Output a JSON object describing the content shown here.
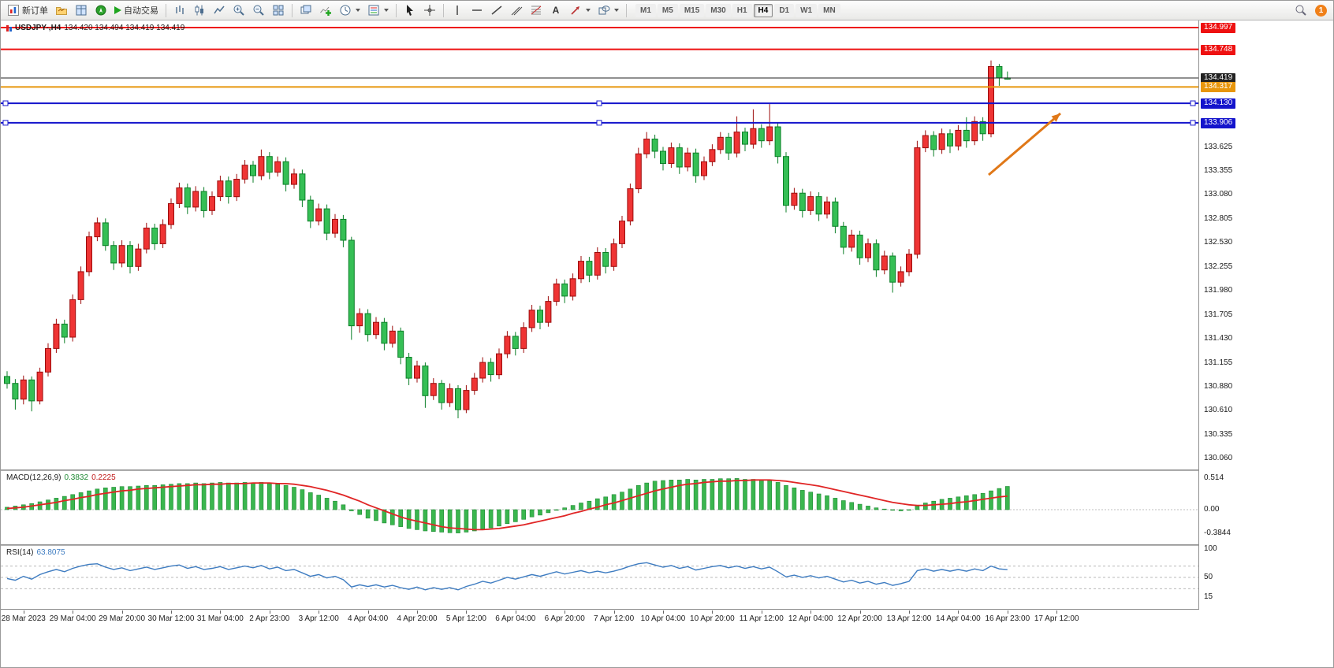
{
  "toolbar": {
    "new_order": "新订单",
    "auto_trading": "自动交易",
    "timeframes": [
      "M1",
      "M5",
      "M15",
      "M30",
      "H1",
      "H4",
      "D1",
      "W1",
      "MN"
    ],
    "active_timeframe": "H4",
    "notification_count": "1"
  },
  "chart": {
    "symbol_period": "USDJPY-,H4",
    "ohlc_readout": "134.420 134.494 134.419 134.419"
  },
  "price_axis": {
    "plain_labels": [
      "133.625",
      "133.355",
      "133.080",
      "132.805",
      "132.530",
      "132.255",
      "131.980",
      "131.705",
      "131.430",
      "131.155",
      "130.880",
      "130.610",
      "130.335",
      "130.060"
    ]
  },
  "hlines": [
    {
      "label": "134.997",
      "value": 134.997,
      "color": "#ee1111",
      "width": 2,
      "handles": false
    },
    {
      "label": "134.748",
      "value": 134.748,
      "color": "#ee1111",
      "width": 2,
      "handles": false
    },
    {
      "label": "134.419",
      "value": 134.419,
      "color": "#222222",
      "width": 1,
      "handles": false,
      "current": true
    },
    {
      "label": "134.317",
      "value": 134.317,
      "color": "#e8960c",
      "width": 2,
      "handles": false
    },
    {
      "label": "134.130",
      "value": 134.13,
      "color": "#1414cc",
      "width": 2,
      "handles": true
    },
    {
      "label": "133.906",
      "value": 133.906,
      "color": "#1414cc",
      "width": 2,
      "handles": true
    }
  ],
  "annotation_arrow": {
    "from": [
      1253,
      196
    ],
    "to": [
      1344,
      118
    ],
    "color": "#e07818"
  },
  "colors": {
    "bull": "#ef3434",
    "bull_border": "#9c0d0d",
    "bear": "#35bf55",
    "bear_border": "#0c7f28",
    "macd_hist": "#3ab64e",
    "macd_hist_border": "#1e8a33",
    "macd_signal": "#e02525",
    "rsi_line": "#3e7cc1"
  },
  "chart_data": {
    "type": "candlestick",
    "symbol": "USDJPY-",
    "timeframe": "H4",
    "candles": [
      [
        131.0,
        131.06,
        130.86,
        130.92
      ],
      [
        130.92,
        130.97,
        130.62,
        130.74
      ],
      [
        130.74,
        131.01,
        130.68,
        130.96
      ],
      [
        130.96,
        131.0,
        130.6,
        130.72
      ],
      [
        130.72,
        131.1,
        130.68,
        131.05
      ],
      [
        131.05,
        131.38,
        131.0,
        131.32
      ],
      [
        131.32,
        131.66,
        131.27,
        131.6
      ],
      [
        131.6,
        131.65,
        131.38,
        131.45
      ],
      [
        131.45,
        131.94,
        131.4,
        131.88
      ],
      [
        131.88,
        132.26,
        131.83,
        132.2
      ],
      [
        132.2,
        132.66,
        132.15,
        132.6
      ],
      [
        132.6,
        132.82,
        132.55,
        132.76
      ],
      [
        132.76,
        132.81,
        132.44,
        132.5
      ],
      [
        132.5,
        132.55,
        132.22,
        132.3
      ],
      [
        132.3,
        132.56,
        132.25,
        132.5
      ],
      [
        132.5,
        132.55,
        132.18,
        132.26
      ],
      [
        132.26,
        132.52,
        132.21,
        132.46
      ],
      [
        132.46,
        132.76,
        132.41,
        132.7
      ],
      [
        132.7,
        132.75,
        132.45,
        132.52
      ],
      [
        132.52,
        132.8,
        132.47,
        132.74
      ],
      [
        132.74,
        133.04,
        132.69,
        132.98
      ],
      [
        132.98,
        133.22,
        132.93,
        133.16
      ],
      [
        133.16,
        133.21,
        132.86,
        132.94
      ],
      [
        132.94,
        133.18,
        132.89,
        133.12
      ],
      [
        133.12,
        133.17,
        132.82,
        132.9
      ],
      [
        132.9,
        133.12,
        132.85,
        133.06
      ],
      [
        133.06,
        133.3,
        133.01,
        133.24
      ],
      [
        133.24,
        133.29,
        132.98,
        133.06
      ],
      [
        133.06,
        133.32,
        133.01,
        133.26
      ],
      [
        133.26,
        133.48,
        133.21,
        133.42
      ],
      [
        133.42,
        133.47,
        133.22,
        133.3
      ],
      [
        133.3,
        133.6,
        133.25,
        133.52
      ],
      [
        133.52,
        133.57,
        133.26,
        133.34
      ],
      [
        133.34,
        133.52,
        133.29,
        133.46
      ],
      [
        133.46,
        133.51,
        133.12,
        133.2
      ],
      [
        133.2,
        133.38,
        133.15,
        133.32
      ],
      [
        133.32,
        133.37,
        132.94,
        133.02
      ],
      [
        133.02,
        133.07,
        132.7,
        132.78
      ],
      [
        132.78,
        132.98,
        132.73,
        132.92
      ],
      [
        132.92,
        132.97,
        132.56,
        132.64
      ],
      [
        132.64,
        132.86,
        132.59,
        132.8
      ],
      [
        132.8,
        132.85,
        132.48,
        132.56
      ],
      [
        132.56,
        132.6,
        131.42,
        131.58
      ],
      [
        131.58,
        131.78,
        131.5,
        131.72
      ],
      [
        131.72,
        131.77,
        131.4,
        131.48
      ],
      [
        131.48,
        131.68,
        131.43,
        131.62
      ],
      [
        131.62,
        131.67,
        131.3,
        131.38
      ],
      [
        131.38,
        131.58,
        131.33,
        131.52
      ],
      [
        131.52,
        131.56,
        131.14,
        131.22
      ],
      [
        131.22,
        131.27,
        130.9,
        130.98
      ],
      [
        130.98,
        131.18,
        130.93,
        131.12
      ],
      [
        131.12,
        131.16,
        130.64,
        130.78
      ],
      [
        130.78,
        130.98,
        130.73,
        130.92
      ],
      [
        130.92,
        130.96,
        130.62,
        130.7
      ],
      [
        130.7,
        130.92,
        130.65,
        130.86
      ],
      [
        130.86,
        130.9,
        130.52,
        130.62
      ],
      [
        130.62,
        130.9,
        130.58,
        130.84
      ],
      [
        130.84,
        131.04,
        130.79,
        130.98
      ],
      [
        130.98,
        131.22,
        130.93,
        131.16
      ],
      [
        131.16,
        131.21,
        130.94,
        131.02
      ],
      [
        131.02,
        131.32,
        130.97,
        131.26
      ],
      [
        131.26,
        131.52,
        131.21,
        131.46
      ],
      [
        131.46,
        131.51,
        131.24,
        131.32
      ],
      [
        131.32,
        131.62,
        131.27,
        131.56
      ],
      [
        131.56,
        131.82,
        131.51,
        131.76
      ],
      [
        131.76,
        131.81,
        131.54,
        131.62
      ],
      [
        131.62,
        131.92,
        131.57,
        131.86
      ],
      [
        131.86,
        132.12,
        131.81,
        132.06
      ],
      [
        132.06,
        132.11,
        131.84,
        131.92
      ],
      [
        131.92,
        132.18,
        131.87,
        132.12
      ],
      [
        132.12,
        132.38,
        132.07,
        132.32
      ],
      [
        132.32,
        132.37,
        132.08,
        132.16
      ],
      [
        132.16,
        132.48,
        132.11,
        132.42
      ],
      [
        132.42,
        132.47,
        132.18,
        132.26
      ],
      [
        132.26,
        132.58,
        132.21,
        132.52
      ],
      [
        132.52,
        132.84,
        132.47,
        132.78
      ],
      [
        132.78,
        133.21,
        132.73,
        133.15
      ],
      [
        133.15,
        133.62,
        133.1,
        133.55
      ],
      [
        133.55,
        133.8,
        133.5,
        133.72
      ],
      [
        133.72,
        133.77,
        133.5,
        133.58
      ],
      [
        133.58,
        133.63,
        133.36,
        133.44
      ],
      [
        133.44,
        133.68,
        133.39,
        133.62
      ],
      [
        133.62,
        133.67,
        133.32,
        133.4
      ],
      [
        133.4,
        133.62,
        133.35,
        133.56
      ],
      [
        133.56,
        133.61,
        133.22,
        133.3
      ],
      [
        133.3,
        133.52,
        133.25,
        133.46
      ],
      [
        133.46,
        133.66,
        133.41,
        133.6
      ],
      [
        133.6,
        133.8,
        133.55,
        133.74
      ],
      [
        133.74,
        133.79,
        133.48,
        133.56
      ],
      [
        133.56,
        133.98,
        133.51,
        133.8
      ],
      [
        133.8,
        133.85,
        133.58,
        133.66
      ],
      [
        133.66,
        134.06,
        133.61,
        133.84
      ],
      [
        133.84,
        133.89,
        133.62,
        133.7
      ],
      [
        133.7,
        134.12,
        133.65,
        133.86
      ],
      [
        133.86,
        133.91,
        133.44,
        133.52
      ],
      [
        133.52,
        133.57,
        132.88,
        132.96
      ],
      [
        132.96,
        133.16,
        132.91,
        133.1
      ],
      [
        133.1,
        133.15,
        132.82,
        132.9
      ],
      [
        132.9,
        133.12,
        132.85,
        133.06
      ],
      [
        133.06,
        133.11,
        132.78,
        132.86
      ],
      [
        132.86,
        133.06,
        132.81,
        133.0
      ],
      [
        133.0,
        133.05,
        132.64,
        132.72
      ],
      [
        132.72,
        132.77,
        132.4,
        132.48
      ],
      [
        132.48,
        132.68,
        132.43,
        132.62
      ],
      [
        132.62,
        132.67,
        132.28,
        132.36
      ],
      [
        132.36,
        132.58,
        132.31,
        132.52
      ],
      [
        132.52,
        132.57,
        132.14,
        132.22
      ],
      [
        132.22,
        132.44,
        132.17,
        132.38
      ],
      [
        132.38,
        132.42,
        131.96,
        132.08
      ],
      [
        132.08,
        132.26,
        132.03,
        132.2
      ],
      [
        132.2,
        132.46,
        132.15,
        132.4
      ],
      [
        132.4,
        133.7,
        132.35,
        133.62
      ],
      [
        133.62,
        133.82,
        133.57,
        133.76
      ],
      [
        133.76,
        133.81,
        133.52,
        133.6
      ],
      [
        133.6,
        133.84,
        133.55,
        133.78
      ],
      [
        133.78,
        133.83,
        133.56,
        133.64
      ],
      [
        133.64,
        133.88,
        133.59,
        133.82
      ],
      [
        133.82,
        133.97,
        133.62,
        133.7
      ],
      [
        133.7,
        133.98,
        133.65,
        133.92
      ],
      [
        133.92,
        133.97,
        133.7,
        133.78
      ],
      [
        133.78,
        134.62,
        133.74,
        134.55
      ],
      [
        134.55,
        134.58,
        134.33,
        134.42
      ],
      [
        134.42,
        134.494,
        134.4,
        134.419
      ]
    ],
    "macd": {
      "label": "MACD(12,26,9)",
      "main_value": "0.3832",
      "signal_value": "0.2225",
      "axis_labels": [
        {
          "label": "0.514",
          "value": 0.514
        },
        {
          "label": "0.00",
          "value": 0
        },
        {
          "label": "-0.3844",
          "value": -0.3844
        }
      ],
      "histogram": [
        0.04,
        0.06,
        0.08,
        0.1,
        0.13,
        0.16,
        0.19,
        0.22,
        0.25,
        0.28,
        0.31,
        0.34,
        0.36,
        0.37,
        0.38,
        0.38,
        0.39,
        0.4,
        0.4,
        0.41,
        0.42,
        0.43,
        0.43,
        0.44,
        0.43,
        0.44,
        0.45,
        0.44,
        0.44,
        0.45,
        0.44,
        0.45,
        0.43,
        0.42,
        0.4,
        0.37,
        0.33,
        0.28,
        0.24,
        0.19,
        0.14,
        0.08,
        -0.02,
        -0.08,
        -0.14,
        -0.18,
        -0.22,
        -0.25,
        -0.28,
        -0.31,
        -0.33,
        -0.35,
        -0.36,
        -0.37,
        -0.38,
        -0.384,
        -0.37,
        -0.35,
        -0.32,
        -0.3,
        -0.27,
        -0.23,
        -0.2,
        -0.16,
        -0.12,
        -0.09,
        -0.05,
        -0.01,
        0.03,
        0.07,
        0.11,
        0.14,
        0.18,
        0.21,
        0.25,
        0.29,
        0.34,
        0.4,
        0.44,
        0.47,
        0.48,
        0.49,
        0.49,
        0.5,
        0.49,
        0.5,
        0.5,
        0.51,
        0.51,
        0.514,
        0.5,
        0.5,
        0.49,
        0.48,
        0.45,
        0.4,
        0.36,
        0.32,
        0.29,
        0.26,
        0.23,
        0.19,
        0.15,
        0.12,
        0.09,
        0.06,
        0.03,
        0.01,
        -0.01,
        -0.02,
        0.0,
        0.06,
        0.11,
        0.14,
        0.17,
        0.19,
        0.21,
        0.23,
        0.25,
        0.27,
        0.31,
        0.35,
        0.3832
      ],
      "signal": [
        0.02,
        0.03,
        0.04,
        0.06,
        0.08,
        0.1,
        0.12,
        0.15,
        0.17,
        0.2,
        0.22,
        0.25,
        0.27,
        0.29,
        0.31,
        0.32,
        0.34,
        0.35,
        0.36,
        0.37,
        0.38,
        0.39,
        0.4,
        0.41,
        0.41,
        0.42,
        0.42,
        0.43,
        0.43,
        0.43,
        0.44,
        0.44,
        0.44,
        0.43,
        0.43,
        0.42,
        0.4,
        0.38,
        0.35,
        0.32,
        0.28,
        0.24,
        0.19,
        0.14,
        0.08,
        0.03,
        -0.02,
        -0.07,
        -0.12,
        -0.16,
        -0.19,
        -0.22,
        -0.25,
        -0.28,
        -0.3,
        -0.31,
        -0.32,
        -0.33,
        -0.33,
        -0.32,
        -0.31,
        -0.29,
        -0.27,
        -0.25,
        -0.22,
        -0.19,
        -0.16,
        -0.13,
        -0.1,
        -0.06,
        -0.03,
        0.01,
        0.04,
        0.08,
        0.11,
        0.15,
        0.19,
        0.23,
        0.27,
        0.31,
        0.34,
        0.37,
        0.4,
        0.42,
        0.43,
        0.45,
        0.46,
        0.47,
        0.47,
        0.48,
        0.48,
        0.49,
        0.49,
        0.49,
        0.48,
        0.47,
        0.45,
        0.43,
        0.41,
        0.39,
        0.36,
        0.33,
        0.3,
        0.27,
        0.24,
        0.21,
        0.18,
        0.15,
        0.12,
        0.1,
        0.08,
        0.07,
        0.07,
        0.08,
        0.09,
        0.1,
        0.12,
        0.13,
        0.15,
        0.17,
        0.19,
        0.21,
        0.2225
      ]
    },
    "rsi": {
      "label": "RSI(14)",
      "value": "63.8075",
      "axis_labels": [
        {
          "label": "100",
          "value": 100
        },
        {
          "label": "50",
          "value": 50
        },
        {
          "label": "15",
          "value": 15
        }
      ],
      "levels": [
        70,
        50,
        30
      ],
      "values": [
        48,
        45,
        52,
        47,
        55,
        60,
        64,
        60,
        66,
        70,
        73,
        74,
        68,
        64,
        67,
        62,
        65,
        68,
        64,
        67,
        70,
        72,
        66,
        69,
        64,
        66,
        69,
        64,
        67,
        70,
        67,
        71,
        65,
        68,
        62,
        64,
        58,
        52,
        55,
        49,
        52,
        46,
        33,
        37,
        34,
        37,
        33,
        36,
        32,
        29,
        33,
        28,
        32,
        29,
        32,
        28,
        34,
        38,
        43,
        40,
        45,
        50,
        47,
        51,
        55,
        52,
        56,
        60,
        56,
        59,
        62,
        58,
        61,
        58,
        61,
        65,
        70,
        74,
        76,
        72,
        68,
        71,
        66,
        69,
        63,
        66,
        69,
        71,
        67,
        70,
        66,
        69,
        65,
        68,
        60,
        51,
        54,
        50,
        53,
        49,
        52,
        47,
        42,
        45,
        40,
        43,
        38,
        41,
        36,
        39,
        43,
        62,
        65,
        61,
        64,
        61,
        64,
        61,
        65,
        62,
        70,
        65,
        63.8
      ]
    },
    "time_labels": [
      "28 Mar 2023",
      "29 Mar 04:00",
      "29 Mar 20:00",
      "30 Mar 12:00",
      "31 Mar 04:00",
      "2 Apr 23:00",
      "3 Apr 12:00",
      "4 Apr 04:00",
      "4 Apr 20:00",
      "5 Apr 12:00",
      "6 Apr 04:00",
      "6 Apr 20:00",
      "7 Apr 12:00",
      "10 Apr 04:00",
      "10 Apr 20:00",
      "11 Apr 12:00",
      "12 Apr 04:00",
      "12 Apr 20:00",
      "13 Apr 12:00",
      "14 Apr 04:00",
      "16 Apr 23:00",
      "17 Apr 12:00"
    ]
  }
}
